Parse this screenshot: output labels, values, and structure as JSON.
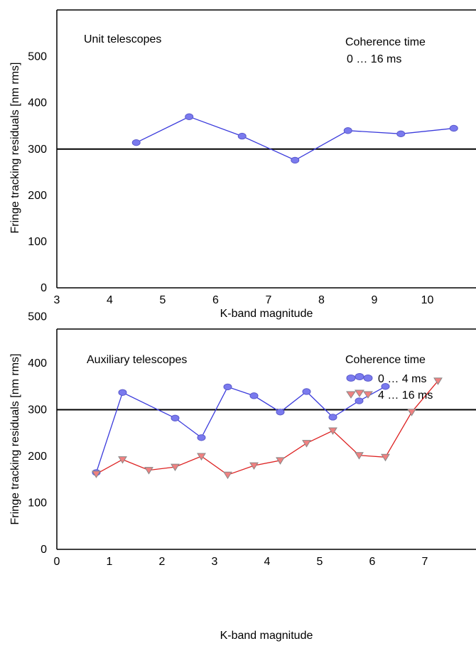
{
  "chart_data": [
    {
      "type": "line",
      "annotation": "Unit telescopes",
      "legend_title": "Coherence time",
      "xlabel": "K-band magnitude",
      "ylabel": "Fringe tracking residuals [nm rms]",
      "xlim": [
        3,
        11
      ],
      "ylim": [
        0,
        600
      ],
      "xticks": [
        "3",
        "4",
        "5",
        "6",
        "7",
        "8",
        "9",
        "10"
      ],
      "yticks": [
        "0",
        "100",
        "200",
        "300",
        "400",
        "500"
      ],
      "reference_line": 300,
      "colors": {
        "series_0": "#3b3bdc",
        "reference": "#000000"
      },
      "series": [
        {
          "name": "0 … 16 ms",
          "marker": "circle",
          "x": [
            4.5,
            5.5,
            6.5,
            7.5,
            8.5,
            9.5,
            10.5
          ],
          "y": [
            314,
            370,
            328,
            276,
            340,
            333,
            345
          ]
        }
      ]
    },
    {
      "type": "line",
      "annotation": "Auxiliary telescopes",
      "legend_title": "Coherence time",
      "xlabel": "K-band magnitude",
      "ylabel": "Fringe tracking residuals [nm rms]",
      "xlim": [
        0,
        8
      ],
      "ylim": [
        0,
        600
      ],
      "xticks": [
        "0",
        "1",
        "2",
        "3",
        "4",
        "5",
        "6",
        "7"
      ],
      "yticks": [
        "0",
        "100",
        "200",
        "300",
        "400",
        "500"
      ],
      "reference_line": 300,
      "colors": {
        "series_0": "#3b3bdc",
        "series_1": "#dd2222",
        "reference": "#000000"
      },
      "series": [
        {
          "name": "0 … 4 ms",
          "marker": "circle",
          "x": [
            0.75,
            1.25,
            2.25,
            2.75,
            3.25,
            3.75,
            4.25,
            4.75,
            5.25,
            5.75,
            6.25
          ],
          "y": [
            165,
            337,
            282,
            240,
            349,
            330,
            295,
            339,
            284,
            319,
            350
          ]
        },
        {
          "name": "4 … 16 ms",
          "marker": "triangle-down",
          "x": [
            0.75,
            1.25,
            1.75,
            2.25,
            2.75,
            3.25,
            3.75,
            4.25,
            4.75,
            5.25,
            5.75,
            6.25,
            6.75,
            7.25
          ],
          "y": [
            162,
            193,
            170,
            177,
            200,
            160,
            180,
            191,
            228,
            255,
            202,
            198,
            295,
            362
          ]
        }
      ]
    }
  ]
}
